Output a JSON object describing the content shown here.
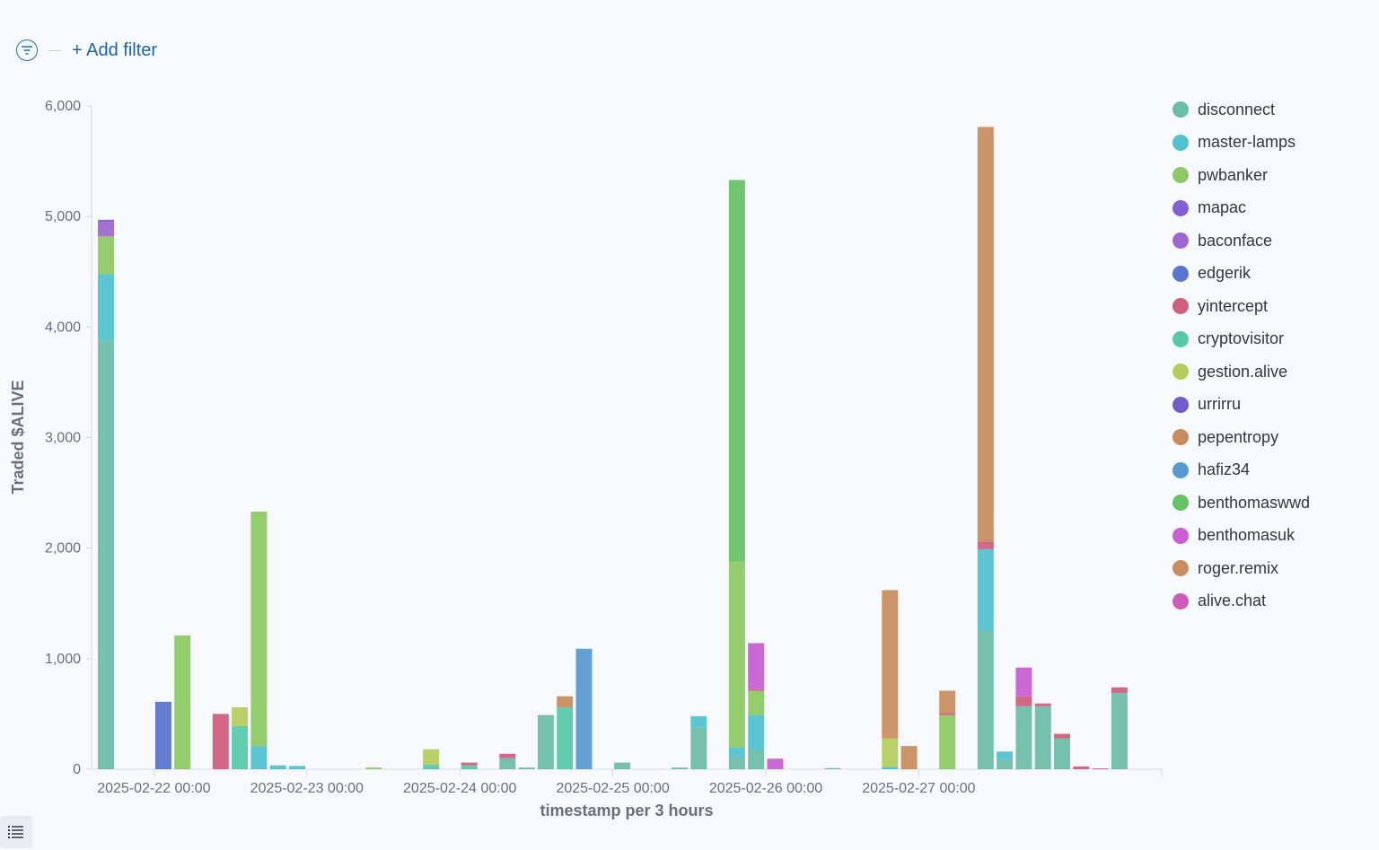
{
  "filter_bar": {
    "add_filter_label": "+ Add filter",
    "filter_icon": "filter-icon"
  },
  "list_button_icon": "list-icon",
  "legend": [
    {
      "name": "disconnect",
      "color": "#54b399"
    },
    {
      "name": "master-lamps",
      "color": "#36b7c6"
    },
    {
      "name": "pwbanker",
      "color": "#7cc04a"
    },
    {
      "name": "mapac",
      "color": "#6c45c7"
    },
    {
      "name": "baconface",
      "color": "#8e4ec8"
    },
    {
      "name": "edgerik",
      "color": "#3d5fc4"
    },
    {
      "name": "yintercept",
      "color": "#c84468"
    },
    {
      "name": "cryptovisitor",
      "color": "#3cc09a"
    },
    {
      "name": "gestion.alive",
      "color": "#a9c443"
    },
    {
      "name": "urrirru",
      "color": "#5b3fc1"
    },
    {
      "name": "pepentropy",
      "color": "#bd7941"
    },
    {
      "name": "hafiz34",
      "color": "#3c88c8"
    },
    {
      "name": "benthomaswwd",
      "color": "#4cb94a"
    },
    {
      "name": "benthomasuk",
      "color": "#bf45c9"
    },
    {
      "name": "roger.remix",
      "color": "#c07b43"
    },
    {
      "name": "alive.chat",
      "color": "#c73fae"
    }
  ],
  "chart_data": {
    "type": "bar",
    "stacked": true,
    "title": "",
    "xlabel": "timestamp per 3 hours",
    "ylabel": "Traded $ALIVE",
    "ylim": [
      0,
      6000
    ],
    "yticks": [
      "0",
      "1,000",
      "2,000",
      "3,000",
      "4,000",
      "5,000",
      "6,000"
    ],
    "x_tick_labels": [
      "2025-02-22 00:00",
      "2025-02-23 00:00",
      "2025-02-24 00:00",
      "2025-02-25 00:00",
      "2025-02-26 00:00",
      "2025-02-27 00:00"
    ],
    "x_axis_start": "2025-02-21 15:00",
    "interval_hours": 3,
    "legend_position": "right",
    "grid": false,
    "bars": [
      {
        "time": "2025-02-21 15:00",
        "stack": [
          {
            "series": "disconnect",
            "value": 3880
          },
          {
            "series": "master-lamps",
            "value": 600
          },
          {
            "series": "pwbanker",
            "value": 340
          },
          {
            "series": "baconface",
            "value": 130
          },
          {
            "series": "mapac",
            "value": 20
          }
        ]
      },
      {
        "time": "2025-02-22 00:00",
        "stack": [
          {
            "series": "edgerik",
            "value": 610
          }
        ]
      },
      {
        "time": "2025-02-22 03:00",
        "stack": [
          {
            "series": "pwbanker",
            "value": 1210
          }
        ]
      },
      {
        "time": "2025-02-22 09:00",
        "stack": [
          {
            "series": "yintercept",
            "value": 500
          }
        ]
      },
      {
        "time": "2025-02-22 12:00",
        "stack": [
          {
            "series": "cryptovisitor",
            "value": 390
          },
          {
            "series": "gestion.alive",
            "value": 170
          }
        ]
      },
      {
        "time": "2025-02-22 15:00",
        "stack": [
          {
            "series": "master-lamps",
            "value": 210
          },
          {
            "series": "pwbanker",
            "value": 2120
          }
        ]
      },
      {
        "time": "2025-02-22 18:00",
        "stack": [
          {
            "series": "master-lamps",
            "value": 35
          }
        ]
      },
      {
        "time": "2025-02-22 21:00",
        "stack": [
          {
            "series": "master-lamps",
            "value": 30
          }
        ]
      },
      {
        "time": "2025-02-23 09:00",
        "stack": [
          {
            "series": "pwbanker",
            "value": 15
          }
        ]
      },
      {
        "time": "2025-02-23 18:00",
        "stack": [
          {
            "series": "cryptovisitor",
            "value": 40
          },
          {
            "series": "gestion.alive",
            "value": 140
          }
        ]
      },
      {
        "time": "2025-02-24 00:00",
        "stack": [
          {
            "series": "cryptovisitor",
            "value": 35
          },
          {
            "series": "yintercept",
            "value": 25
          }
        ]
      },
      {
        "time": "2025-02-24 06:00",
        "stack": [
          {
            "series": "disconnect",
            "value": 100
          },
          {
            "series": "yintercept",
            "value": 40
          }
        ]
      },
      {
        "time": "2025-02-24 09:00",
        "stack": [
          {
            "series": "disconnect",
            "value": 15
          }
        ]
      },
      {
        "time": "2025-02-24 12:00",
        "stack": [
          {
            "series": "disconnect",
            "value": 490
          }
        ]
      },
      {
        "time": "2025-02-24 15:00",
        "stack": [
          {
            "series": "cryptovisitor",
            "value": 560
          },
          {
            "series": "pepentropy",
            "value": 100
          }
        ]
      },
      {
        "time": "2025-02-24 18:00",
        "stack": [
          {
            "series": "hafiz34",
            "value": 1090
          }
        ]
      },
      {
        "time": "2025-02-25 00:00",
        "stack": [
          {
            "series": "disconnect",
            "value": 60
          }
        ]
      },
      {
        "time": "2025-02-25 09:00",
        "stack": [
          {
            "series": "disconnect",
            "value": 15
          }
        ]
      },
      {
        "time": "2025-02-25 12:00",
        "stack": [
          {
            "series": "disconnect",
            "value": 380
          },
          {
            "series": "master-lamps",
            "value": 100
          }
        ]
      },
      {
        "time": "2025-02-25 18:00",
        "stack": [
          {
            "series": "disconnect",
            "value": 110
          },
          {
            "series": "master-lamps",
            "value": 90
          },
          {
            "series": "pwbanker",
            "value": 1680
          },
          {
            "series": "benthomaswwd",
            "value": 3450
          }
        ]
      },
      {
        "time": "2025-02-25 21:00",
        "stack": [
          {
            "series": "disconnect",
            "value": 170
          },
          {
            "series": "master-lamps",
            "value": 320
          },
          {
            "series": "pwbanker",
            "value": 220
          },
          {
            "series": "yintercept",
            "value": 15
          },
          {
            "series": "benthomasuk",
            "value": 415
          }
        ]
      },
      {
        "time": "2025-02-26 00:00",
        "stack": [
          {
            "series": "benthomasuk",
            "value": 95
          }
        ]
      },
      {
        "time": "2025-02-26 09:00",
        "stack": [
          {
            "series": "disconnect",
            "value": 10
          }
        ]
      },
      {
        "time": "2025-02-26 18:00",
        "stack": [
          {
            "series": "master-lamps",
            "value": 20
          },
          {
            "series": "gestion.alive",
            "value": 260
          },
          {
            "series": "roger.remix",
            "value": 1340
          }
        ]
      },
      {
        "time": "2025-02-26 21:00",
        "stack": [
          {
            "series": "roger.remix",
            "value": 210
          }
        ]
      },
      {
        "time": "2025-02-27 03:00",
        "stack": [
          {
            "series": "pwbanker",
            "value": 490
          },
          {
            "series": "yintercept",
            "value": 20
          },
          {
            "series": "roger.remix",
            "value": 200
          }
        ]
      },
      {
        "time": "2025-02-27 09:00",
        "stack": [
          {
            "series": "disconnect",
            "value": 1250
          },
          {
            "series": "master-lamps",
            "value": 740
          },
          {
            "series": "yintercept",
            "value": 70
          },
          {
            "series": "roger.remix",
            "value": 3750
          }
        ]
      },
      {
        "time": "2025-02-27 12:00",
        "stack": [
          {
            "series": "disconnect",
            "value": 90
          },
          {
            "series": "master-lamps",
            "value": 70
          }
        ]
      },
      {
        "time": "2025-02-27 15:00",
        "stack": [
          {
            "series": "disconnect",
            "value": 570
          },
          {
            "series": "yintercept",
            "value": 90
          },
          {
            "series": "benthomasuk",
            "value": 260
          }
        ]
      },
      {
        "time": "2025-02-27 18:00",
        "stack": [
          {
            "series": "disconnect",
            "value": 570
          },
          {
            "series": "yintercept",
            "value": 25
          }
        ]
      },
      {
        "time": "2025-02-27 21:00",
        "stack": [
          {
            "series": "disconnect",
            "value": 280
          },
          {
            "series": "yintercept",
            "value": 40
          }
        ]
      },
      {
        "time": "2025-02-28 00:00",
        "stack": [
          {
            "series": "yintercept",
            "value": 25
          }
        ]
      },
      {
        "time": "2025-02-28 03:00",
        "stack": [
          {
            "series": "alive.chat",
            "value": 8
          }
        ]
      },
      {
        "time": "2025-02-28 06:00",
        "stack": [
          {
            "series": "disconnect",
            "value": 690
          },
          {
            "series": "yintercept",
            "value": 50
          }
        ]
      }
    ]
  }
}
